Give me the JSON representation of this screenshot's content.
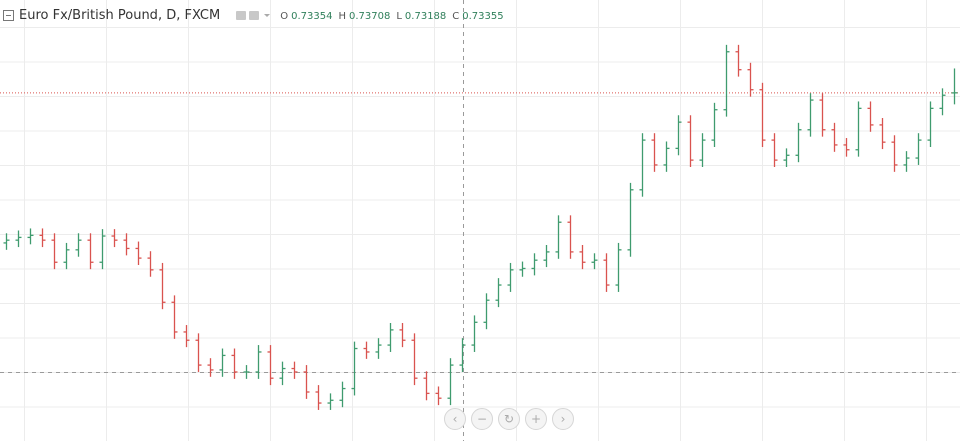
{
  "chart_data": {
    "type": "ohlc",
    "title": "Euro Fx/British Pound, D, FXCM",
    "ohlc_labels": [
      "O",
      "H",
      "L",
      "C"
    ],
    "up_color": "#3f9b6e",
    "down_color": "#d9534f",
    "price_line_color": "#d9534f",
    "ylim": [
      0.6831,
      0.747
    ],
    "open": [
      0.7118,
      0.7122,
      0.7126,
      0.7129,
      0.7122,
      0.709,
      0.7108,
      0.7122,
      0.709,
      0.7128,
      0.7122,
      0.711,
      0.7096,
      0.7079,
      0.7032,
      0.6989,
      0.6977,
      0.6941,
      0.6934,
      0.6955,
      0.6931,
      0.6931,
      0.696,
      0.6922,
      0.6936,
      0.6931,
      0.6902,
      0.6886,
      0.689,
      0.6907,
      0.6965,
      0.696,
      0.697,
      0.6992,
      0.6977,
      0.6922,
      0.69,
      0.6893,
      0.6941,
      0.697,
      0.7003,
      0.7035,
      0.7057,
      0.7079,
      0.7081,
      0.7093,
      0.7105,
      0.7148,
      0.7105,
      0.709,
      0.7093,
      0.7057,
      0.7108,
      0.7195,
      0.7267,
      0.7231,
      0.7255,
      0.7293,
      0.7238,
      0.7267,
      0.7311,
      0.7395,
      0.7369,
      0.734,
      0.7267,
      0.7238,
      0.7245,
      0.7282,
      0.7325,
      0.7282,
      0.726,
      0.7253,
      0.7313,
      0.7289,
      0.7264,
      0.7231,
      0.7241,
      0.7267,
      0.7313,
      0.73354
    ],
    "high": [
      0.7132,
      0.7136,
      0.7139,
      0.7139,
      0.7132,
      0.7118,
      0.7132,
      0.7132,
      0.7138,
      0.7138,
      0.7132,
      0.712,
      0.7106,
      0.7089,
      0.7042,
      0.6999,
      0.6987,
      0.6951,
      0.6965,
      0.6965,
      0.6941,
      0.697,
      0.697,
      0.6946,
      0.6946,
      0.6941,
      0.6912,
      0.69,
      0.6917,
      0.6975,
      0.6975,
      0.698,
      0.7002,
      0.7002,
      0.6987,
      0.6932,
      0.691,
      0.6951,
      0.698,
      0.7013,
      0.7045,
      0.7067,
      0.7089,
      0.7091,
      0.7103,
      0.7115,
      0.7158,
      0.7158,
      0.7115,
      0.7103,
      0.7103,
      0.7118,
      0.7205,
      0.7277,
      0.7277,
      0.7265,
      0.7303,
      0.7303,
      0.7277,
      0.7321,
      0.7405,
      0.7405,
      0.7379,
      0.735,
      0.7277,
      0.7255,
      0.7292,
      0.7335,
      0.7335,
      0.7292,
      0.727,
      0.7323,
      0.7323,
      0.7299,
      0.7274,
      0.7251,
      0.7277,
      0.7323,
      0.7342,
      0.73708
    ],
    "low": [
      0.7108,
      0.7112,
      0.7116,
      0.7112,
      0.708,
      0.708,
      0.7098,
      0.708,
      0.708,
      0.7112,
      0.71,
      0.7086,
      0.7069,
      0.7022,
      0.6979,
      0.6967,
      0.6931,
      0.6924,
      0.6924,
      0.6921,
      0.6921,
      0.6921,
      0.6912,
      0.6912,
      0.6921,
      0.6892,
      0.6876,
      0.6876,
      0.688,
      0.6897,
      0.695,
      0.695,
      0.696,
      0.6967,
      0.6912,
      0.689,
      0.6883,
      0.6883,
      0.6931,
      0.696,
      0.6993,
      0.7025,
      0.7047,
      0.7069,
      0.7071,
      0.7083,
      0.7095,
      0.7095,
      0.708,
      0.708,
      0.7047,
      0.7047,
      0.7098,
      0.7185,
      0.7221,
      0.7221,
      0.7245,
      0.7228,
      0.7228,
      0.7257,
      0.7301,
      0.7359,
      0.733,
      0.7257,
      0.7228,
      0.7228,
      0.7235,
      0.7272,
      0.7272,
      0.725,
      0.7243,
      0.7243,
      0.7279,
      0.7254,
      0.7221,
      0.7221,
      0.7231,
      0.7257,
      0.7303,
      0.73188
    ],
    "close": [
      0.7122,
      0.7126,
      0.7129,
      0.7122,
      0.709,
      0.7108,
      0.7122,
      0.709,
      0.7128,
      0.7122,
      0.711,
      0.7096,
      0.7079,
      0.7032,
      0.6989,
      0.6977,
      0.6941,
      0.6934,
      0.6955,
      0.6931,
      0.6931,
      0.696,
      0.6922,
      0.6936,
      0.6931,
      0.6902,
      0.6886,
      0.689,
      0.6907,
      0.6965,
      0.696,
      0.697,
      0.6992,
      0.6977,
      0.6922,
      0.69,
      0.6893,
      0.6941,
      0.697,
      0.7003,
      0.7035,
      0.7057,
      0.7079,
      0.7081,
      0.7093,
      0.7105,
      0.7148,
      0.7105,
      0.709,
      0.7093,
      0.7057,
      0.7108,
      0.7195,
      0.7267,
      0.7231,
      0.7255,
      0.7293,
      0.7238,
      0.7267,
      0.7311,
      0.7395,
      0.7369,
      0.734,
      0.7267,
      0.7238,
      0.7245,
      0.7282,
      0.7325,
      0.7282,
      0.726,
      0.7253,
      0.7313,
      0.7289,
      0.7264,
      0.7231,
      0.7241,
      0.7267,
      0.7313,
      0.7332,
      0.73355
    ]
  }
}
